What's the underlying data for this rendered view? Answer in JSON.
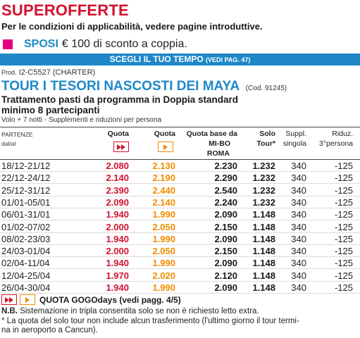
{
  "headline": "SUPEROFFERTE",
  "intro": "Per le condizioni di applicabilità, vedere pagine introduttive.",
  "sposi": {
    "label": "SPOSI",
    "text": "€ 100 di sconto a coppia."
  },
  "banner": {
    "text": "SCEGLI IL TUO TEMPO",
    "small": "(VEDI PAG. 47)"
  },
  "prod": {
    "prefix": "Prod.",
    "code": "I2-C5527 (CHARTER)"
  },
  "tour": {
    "title": "TOUR I TESORI NASCOSTI DEI MAYA",
    "code": "(Cod. 91245)"
  },
  "subtitle1": "Trattamento pasti da programma in Doppia standard",
  "subtitle2": "minimo 8 partecipanti",
  "subtitle3": "Volo + 7 notti - Supplementi e riduzioni per persona",
  "table": {
    "headers": {
      "partenze": "PARTENZE",
      "dal_al": "dal/al",
      "quota1": "Quota",
      "quota2": "Quota",
      "base_l1": "Quota base da",
      "base_l2": "MI-BO",
      "base_l3": "ROMA",
      "solo_l1": "Solo",
      "solo_l2": "Tour*",
      "suppl_l1": "Suppl.",
      "suppl_l2": "singola",
      "riduz_l1": "Riduz.",
      "riduz_l2": "3°persona"
    },
    "rows": [
      {
        "date": "18/12-21/12",
        "q1": "2.080",
        "q2": "2.130",
        "base": "2.230",
        "solo": "1.232",
        "suppl": "340",
        "riduz": "-125"
      },
      {
        "date": "22/12-24/12",
        "q1": "2.140",
        "q2": "2.190",
        "base": "2.290",
        "solo": "1.232",
        "suppl": "340",
        "riduz": "-125"
      },
      {
        "date": "25/12-31/12",
        "q1": "2.390",
        "q2": "2.440",
        "base": "2.540",
        "solo": "1.232",
        "suppl": "340",
        "riduz": "-125"
      },
      {
        "date": "01/01-05/01",
        "q1": "2.090",
        "q2": "2.140",
        "base": "2.240",
        "solo": "1.232",
        "suppl": "340",
        "riduz": "-125"
      },
      {
        "date": "06/01-31/01",
        "q1": "1.940",
        "q2": "1.990",
        "base": "2.090",
        "solo": "1.148",
        "suppl": "340",
        "riduz": "-125"
      },
      {
        "date": "01/02-07/02",
        "q1": "2.000",
        "q2": "2.050",
        "base": "2.150",
        "solo": "1.148",
        "suppl": "340",
        "riduz": "-125"
      },
      {
        "date": "08/02-23/03",
        "q1": "1.940",
        "q2": "1.990",
        "base": "2.090",
        "solo": "1.148",
        "suppl": "340",
        "riduz": "-125"
      },
      {
        "date": "24/03-01/04",
        "q1": "2.000",
        "q2": "2.050",
        "base": "2.150",
        "solo": "1.148",
        "suppl": "340",
        "riduz": "-125"
      },
      {
        "date": "02/04-11/04",
        "q1": "1.940",
        "q2": "1.990",
        "base": "2.090",
        "solo": "1.148",
        "suppl": "340",
        "riduz": "-125"
      },
      {
        "date": "12/04-25/04",
        "q1": "1.970",
        "q2": "2.020",
        "base": "2.120",
        "solo": "1.148",
        "suppl": "340",
        "riduz": "-125"
      },
      {
        "date": "26/04-30/04",
        "q1": "1.940",
        "q2": "1.990",
        "base": "2.090",
        "solo": "1.148",
        "suppl": "340",
        "riduz": "-125"
      }
    ]
  },
  "gogo": "QUOTA GOGOdays (vedi pagg. 4/5)",
  "nb": {
    "label": "N.B.",
    "text": "Sistemazione in tripla consentita solo se non è richiesto letto extra."
  },
  "footnote_l1": "* La quota del solo tour non include alcun trasferimento (l'ultimo giorno il tour termi-",
  "footnote_l2": "na in aeroporto a Cancun).",
  "colors": {
    "red": "#d2122e",
    "blue": "#1e88c8",
    "orange": "#f28c00",
    "magenta": "#e5007e"
  },
  "icons": {
    "fast_forward": "fast-forward-icon",
    "play": "play-icon"
  }
}
